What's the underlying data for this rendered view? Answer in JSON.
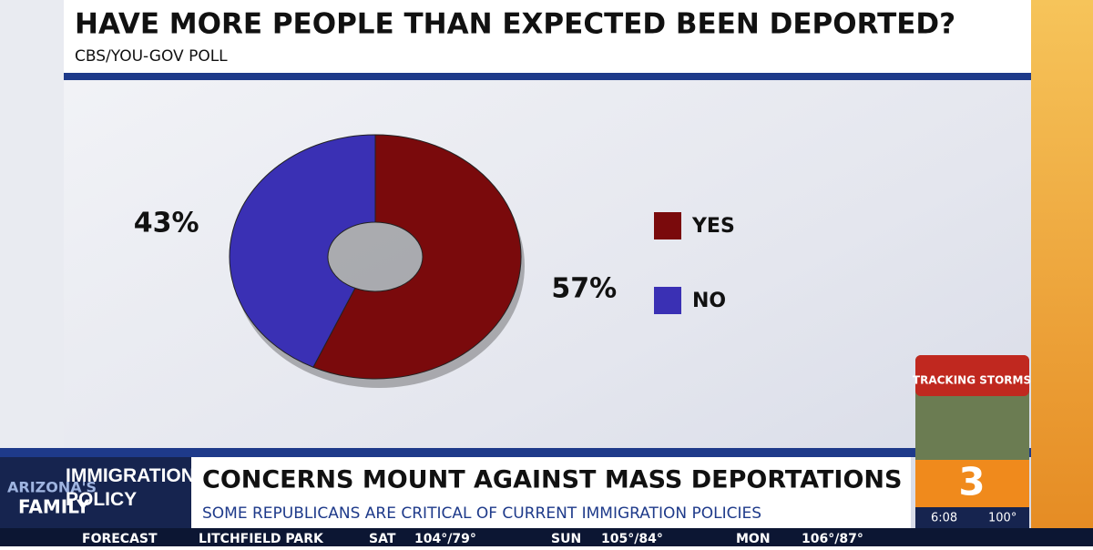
{
  "chart_data": {
    "type": "pie",
    "title": "HAVE MORE PEOPLE THAN EXPECTED BEEN DEPORTED?",
    "subtitle": "CBS/YOU-GOV POLL",
    "categories": [
      "YES",
      "NO"
    ],
    "values": [
      57,
      43
    ],
    "value_labels": [
      "57%",
      "43%"
    ],
    "colors": [
      "#7a0a0c",
      "#3a30b4"
    ],
    "legend": "right"
  },
  "lower_third": {
    "section": "IMMIGRATION POLICY",
    "headline": "CONCERNS MOUNT AGAINST MASS DEPORTATIONS",
    "subhead": "SOME REPUBLICANS ARE CRITICAL OF CURRENT IMMIGRATION POLICIES"
  },
  "logo": {
    "line1": "ARIZONA'S",
    "line2": "FAMILY"
  },
  "corner": {
    "promo": "TRACKING STORMS",
    "channel": "3",
    "time": "6:08",
    "temp": "100°"
  },
  "ticker": [
    "FORECAST",
    "LITCHFIELD PARK",
    "SAT",
    "104°/79°",
    "SUN",
    "105°/84°",
    "MON",
    "106°/87°"
  ]
}
